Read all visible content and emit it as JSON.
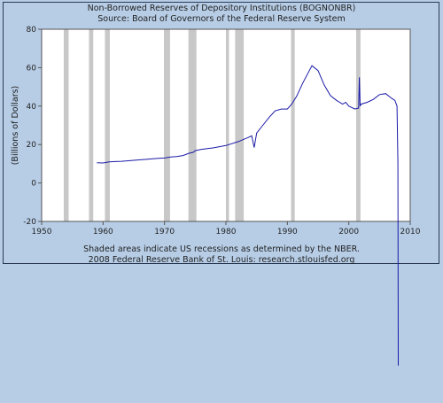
{
  "chart_data": {
    "type": "line",
    "title": "Non-Borrowed Reserves of Depository Institutions (BOGNONBR)",
    "subtitle": "Source: Board of Governors of the Federal Reserve System",
    "xlabel": "",
    "ylabel": "(Billions of Dollars)",
    "xlim": [
      1950,
      2010
    ],
    "ylim": [
      -20,
      80
    ],
    "x_ticks": [
      "1950",
      "1960",
      "1970",
      "1980",
      "1990",
      "2000",
      "2010"
    ],
    "y_ticks": [
      "-20",
      "0",
      "20",
      "40",
      "60",
      "80"
    ],
    "grid": false,
    "recessions": [
      [
        1953.6,
        1954.4
      ],
      [
        1957.7,
        1958.4
      ],
      [
        1960.3,
        1961.1
      ],
      [
        1969.9,
        1970.9
      ],
      [
        1973.9,
        1975.2
      ],
      [
        1980.0,
        1980.5
      ],
      [
        1981.5,
        1982.9
      ],
      [
        1990.6,
        1991.2
      ],
      [
        2001.2,
        2001.9
      ]
    ],
    "series": [
      {
        "x": [
          1959.0,
          1960.0,
          1961.0,
          1963.0,
          1965.0,
          1967.0,
          1969.0,
          1970.0,
          1971.0,
          1972.0,
          1973.0,
          1974.0,
          1974.7,
          1975.0,
          1976.0,
          1978.0,
          1980.0,
          1982.0,
          1983.5,
          1984.2,
          1984.6,
          1985.0,
          1986.0,
          1987.0,
          1988.0,
          1989.0,
          1990.0,
          1990.7,
          1991.5,
          1992.5,
          1993.5,
          1994.0,
          1995.0,
          1996.0,
          1997.0,
          1998.0,
          1999.0,
          1999.5,
          2000.0,
          2001.0,
          2001.6,
          2001.72,
          2001.85,
          2002.0,
          2003.0,
          2004.0,
          2005.0,
          2006.0,
          2007.0,
          2007.5,
          2007.85,
          2008.0,
          2008.05
        ],
        "values": [
          10.5,
          10.4,
          11.0,
          11.3,
          11.8,
          12.3,
          12.8,
          13.0,
          13.5,
          13.8,
          14.3,
          15.5,
          16.0,
          16.8,
          17.5,
          18.3,
          19.5,
          21.5,
          23.5,
          24.5,
          18.5,
          26.0,
          30.0,
          34.0,
          37.5,
          38.5,
          38.5,
          41.0,
          45.0,
          52.0,
          58.0,
          61.0,
          58.5,
          51.0,
          45.5,
          43.0,
          41.0,
          42.0,
          40.0,
          38.5,
          39.0,
          55.0,
          40.0,
          41.0,
          42.0,
          43.5,
          46.0,
          46.5,
          44.0,
          43.0,
          40.0,
          10.0,
          -95.0
        ]
      }
    ],
    "footer": [
      "Shaded areas indicate US recessions as determined by the NBER.",
      "2008 Federal Reserve Bank of St. Louis: research.stlouisfed.org"
    ],
    "colors": {
      "background": "#b7cde6",
      "plot_background": "#ffffff",
      "line": "#1a1aa8",
      "recession": "#c8c8c8"
    }
  }
}
